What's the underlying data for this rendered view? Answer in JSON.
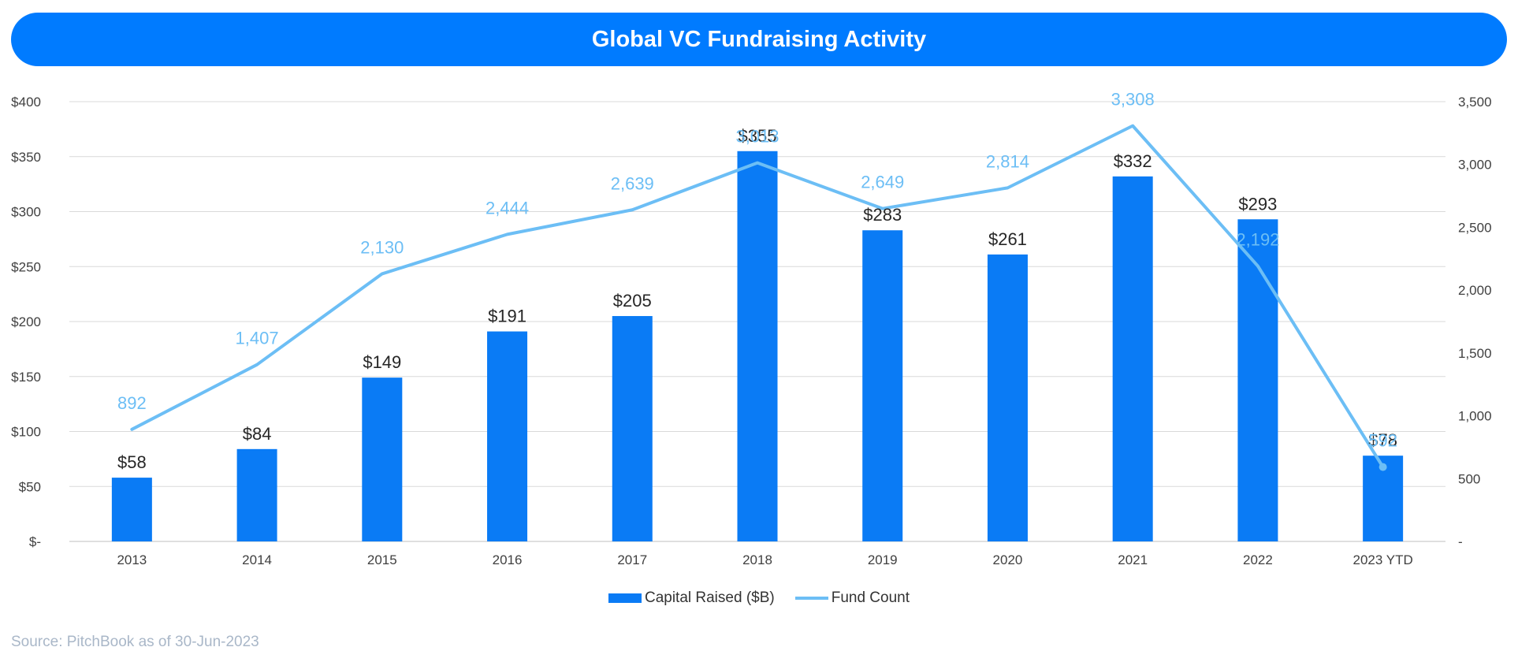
{
  "title": "Global VC Fundraising Activity",
  "source": "Source: PitchBook as of 30-Jun-2023",
  "legend": {
    "bars": "Capital Raised ($B)",
    "line": "Fund Count"
  },
  "colors": {
    "banner": "#007bff",
    "bars": "#0a7bf5",
    "line": "#6cbef5",
    "source": "#a9b7c8"
  },
  "chart_data": {
    "type": "bar",
    "categories": [
      "2013",
      "2014",
      "2015",
      "2016",
      "2017",
      "2018",
      "2019",
      "2020",
      "2021",
      "2022",
      "2023 YTD"
    ],
    "series": [
      {
        "name": "Capital Raised ($B)",
        "type": "bar",
        "axis": "left",
        "values": [
          58,
          84,
          149,
          191,
          205,
          355,
          283,
          261,
          332,
          293,
          78
        ],
        "labels": [
          "$58",
          "$84",
          "$149",
          "$191",
          "$205",
          "$355",
          "$283",
          "$261",
          "$332",
          "$293",
          "$78"
        ]
      },
      {
        "name": "Fund Count",
        "type": "line",
        "axis": "right",
        "values": [
          892,
          1407,
          2130,
          2444,
          2639,
          3013,
          2649,
          2814,
          3308,
          2192,
          592
        ],
        "labels": [
          "892",
          "1,407",
          "2,130",
          "2,444",
          "2,639",
          "3,013",
          "2,649",
          "2,814",
          "3,308",
          "2,192",
          "592"
        ]
      }
    ],
    "y_left": {
      "min": 0,
      "max": 400,
      "ticks": [
        0,
        50,
        100,
        150,
        200,
        250,
        300,
        350,
        400
      ],
      "tick_labels": [
        "$-",
        "$50",
        "$100",
        "$150",
        "$200",
        "$250",
        "$300",
        "$350",
        "$400"
      ]
    },
    "y_right": {
      "min": 0,
      "max": 3500,
      "ticks": [
        0,
        500,
        1000,
        1500,
        2000,
        2500,
        3000,
        3500
      ],
      "tick_labels": [
        "-",
        "500",
        "1,000",
        "1,500",
        "2,000",
        "2,500",
        "3,000",
        "3,500"
      ]
    },
    "grid": true,
    "legend_position": "bottom-center"
  }
}
